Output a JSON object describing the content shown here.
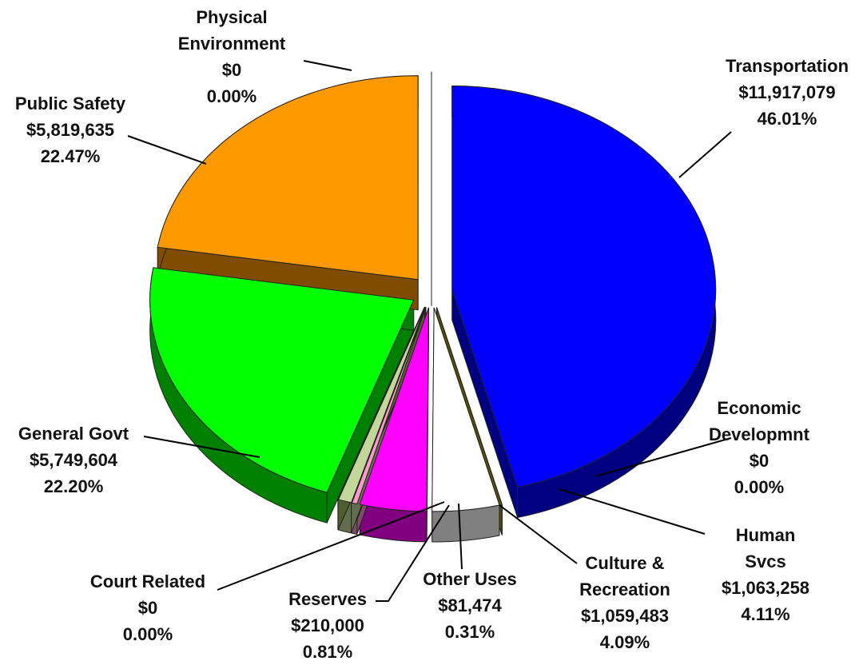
{
  "chart_data": {
    "type": "pie3d",
    "categories": [
      "Transportation",
      "Economic\nDevelopmnt",
      "Human Svcs",
      "Culture &\nRecreation",
      "Other Uses",
      "Reserves",
      "Court Related",
      "General Govt",
      "Public Safety",
      "Physical\nEnvironment"
    ],
    "values": [
      11917079,
      0,
      1063258,
      1059483,
      81474,
      210000,
      0,
      5749604,
      5819635,
      0
    ],
    "value_labels": [
      "$11,917,079",
      "$0",
      "$1,063,258",
      "$1,059,483",
      "$81,474",
      "$210,000",
      "$0",
      "$5,749,604",
      "$5,819,635",
      "$0"
    ],
    "percents": [
      46.01,
      0,
      4.11,
      4.09,
      0.31,
      0.81,
      0,
      22.2,
      22.47,
      0
    ],
    "percent_labels": [
      "46.01%",
      "0.00%",
      "4.11%",
      "4.09%",
      "0.31%",
      "0.81%",
      "0.00%",
      "22.20%",
      "22.47%",
      "0.00%"
    ],
    "colors": [
      "#0000ff",
      "#b3a200",
      "#ffffff",
      "#ff00ff",
      "#ff99cc",
      "#c4d79b",
      "#9bbb59",
      "#00ff00",
      "#ff9900",
      "#800000"
    ]
  }
}
